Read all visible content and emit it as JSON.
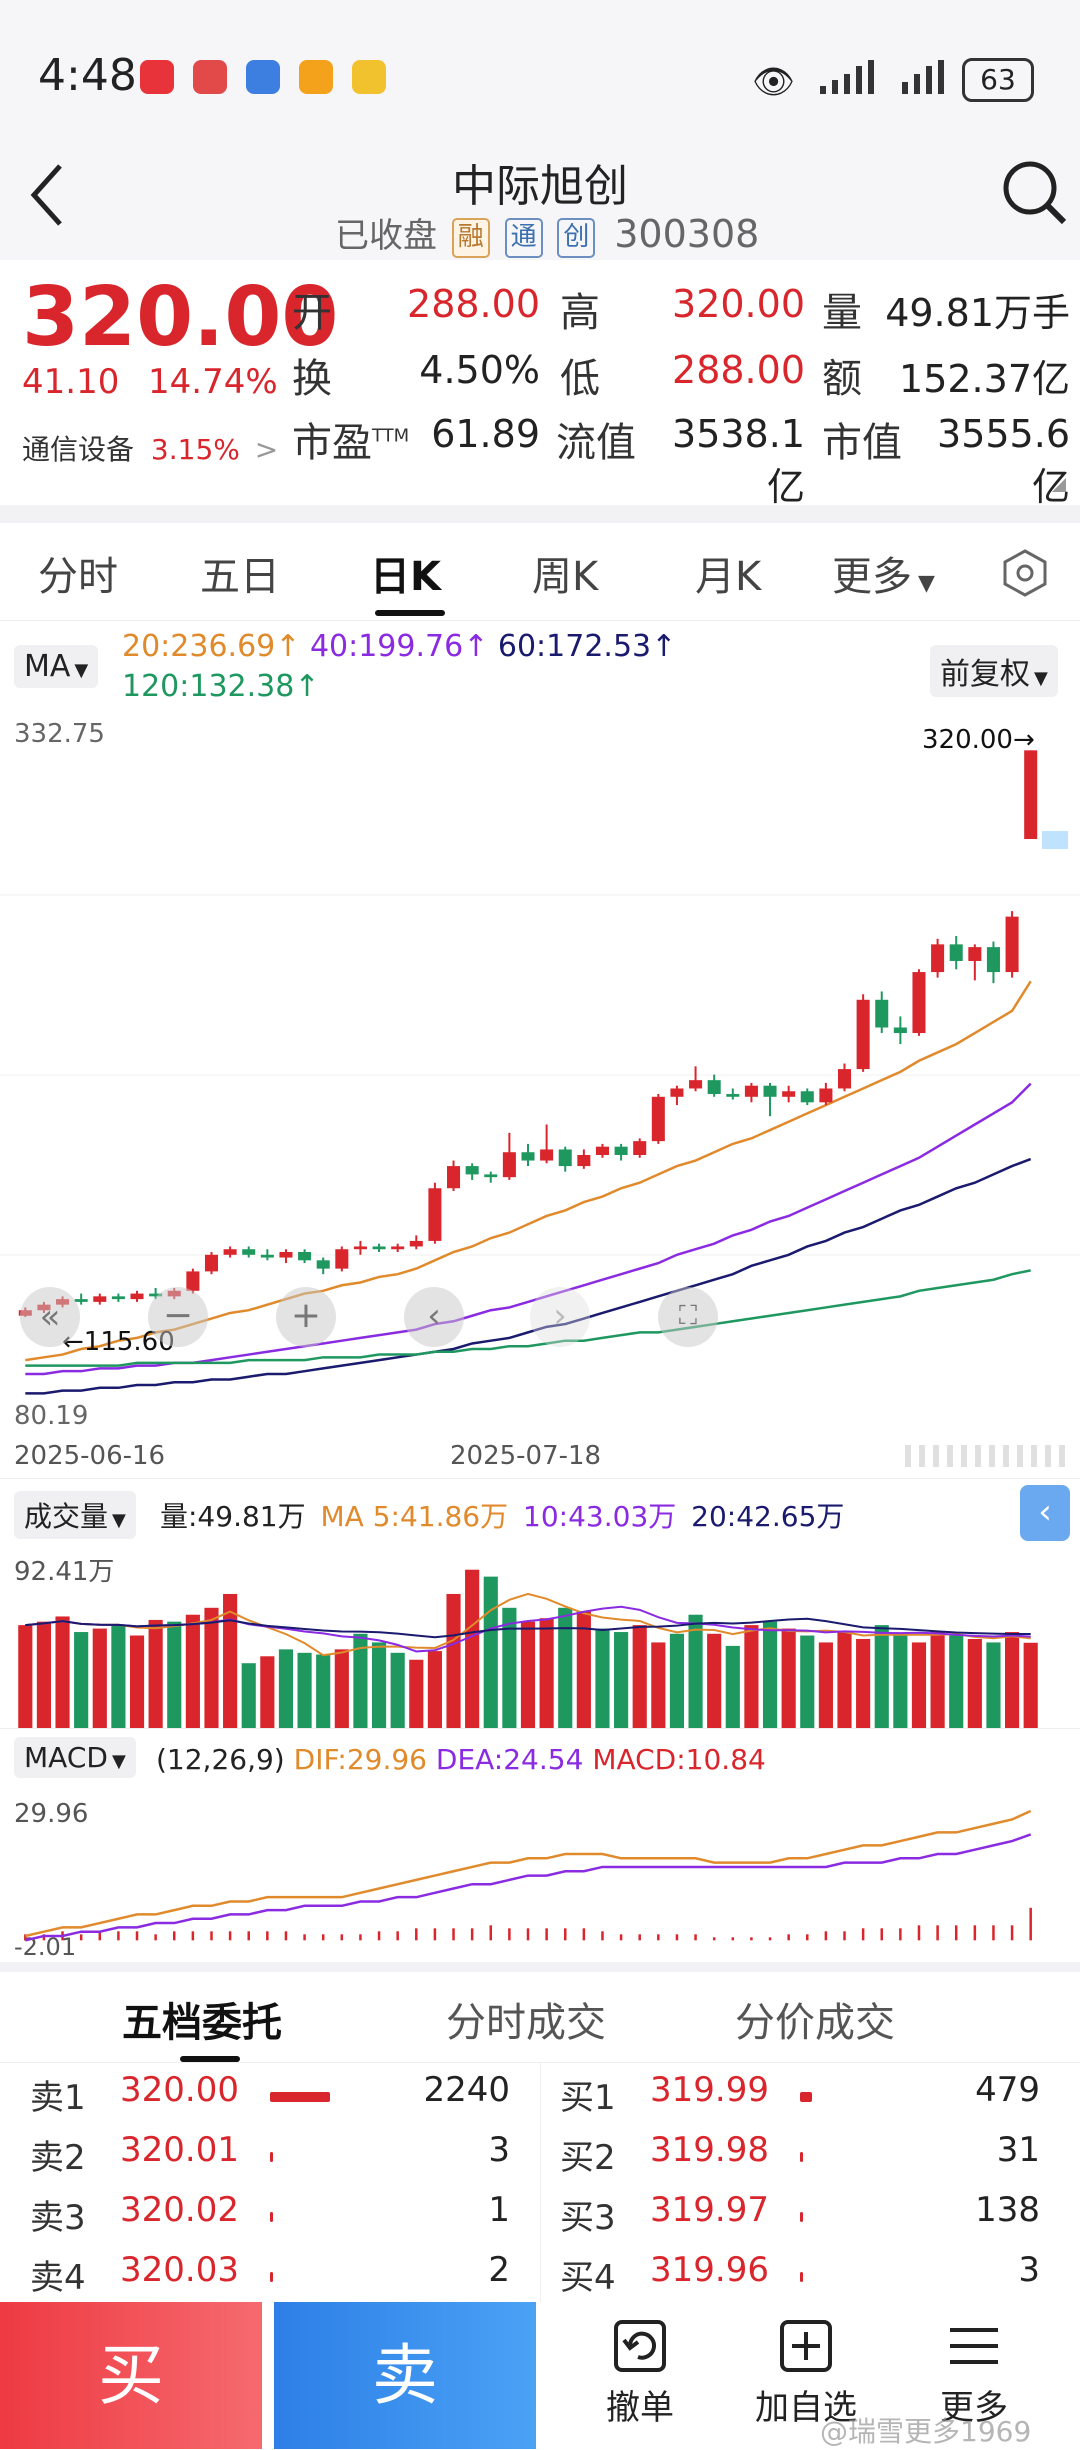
{
  "status_bar": {
    "time": "4:48",
    "battery": "63"
  },
  "header": {
    "title": "中际旭创",
    "status": "已收盘",
    "tags": [
      "融",
      "通",
      "创"
    ],
    "code": "300308"
  },
  "quote": {
    "price": "320.00",
    "change": "41.10",
    "change_pct": "14.74%",
    "sector": "通信设备",
    "sector_pct": "3.15%",
    "sector_arrow": ">",
    "fields": [
      {
        "label": "开",
        "value": "288.00"
      },
      {
        "label": "高",
        "value": "320.00"
      },
      {
        "label": "量",
        "value": "49.81万手"
      },
      {
        "label": "换",
        "value": "4.50%"
      },
      {
        "label": "低",
        "value": "288.00"
      },
      {
        "label": "额",
        "value": "152.37亿"
      },
      {
        "label": "市盈",
        "label_sup": "TTM",
        "value": "61.89"
      },
      {
        "label": "流值",
        "value": "3538.1亿"
      },
      {
        "label": "市值",
        "value": "3555.6亿"
      }
    ]
  },
  "ktabs": [
    "分时",
    "五日",
    "日K",
    "周K",
    "月K",
    "更多"
  ],
  "ma_bar": {
    "selector": "MA",
    "ma20": "20:236.69↑",
    "ma40": "40:199.76↑",
    "ma60": "60:172.53↑",
    "ma120": "120:132.38↑",
    "adjust": "前复权"
  },
  "price_chart_labels": {
    "top": "332.75",
    "bottom": "80.19",
    "high_label": "320.00→",
    "low_label": "←115.60",
    "date_left": "2025-06-16",
    "date_mid": "2025-07-18"
  },
  "volume_bar": {
    "selector": "成交量",
    "vol": "量:49.81万",
    "ma5": "MA 5:41.86万",
    "ma10": "10:43.03万",
    "ma20": "20:42.65万",
    "top_label": "92.41万"
  },
  "macd_bar": {
    "selector": "MACD",
    "params": "(12,26,9)",
    "dif": "DIF:29.96",
    "dea": "DEA:24.54",
    "macd": "MACD:10.84",
    "top_label": "29.96",
    "bottom_label": "-2.01"
  },
  "orderbook_tabs": [
    "五档委托",
    "分时成交",
    "分价成交"
  ],
  "orderbook": {
    "sell": [
      {
        "label": "卖1",
        "price": "320.00",
        "qty": "2240",
        "bar": 0.3
      },
      {
        "label": "卖2",
        "price": "320.01",
        "qty": "3",
        "bar": 0.004
      },
      {
        "label": "卖3",
        "price": "320.02",
        "qty": "1",
        "bar": 0.004
      },
      {
        "label": "卖4",
        "price": "320.03",
        "qty": "2",
        "bar": 0.004
      }
    ],
    "buy": [
      {
        "label": "买1",
        "price": "319.99",
        "qty": "479",
        "bar": 0.06
      },
      {
        "label": "买2",
        "price": "319.98",
        "qty": "31",
        "bar": 0.004
      },
      {
        "label": "买3",
        "price": "319.97",
        "qty": "138",
        "bar": 0.015
      },
      {
        "label": "买4",
        "price": "319.96",
        "qty": "3",
        "bar": 0.004
      }
    ]
  },
  "bottom_bar": {
    "buy": "买",
    "sell": "卖",
    "cancel": "撤单",
    "watch": "加自选",
    "more": "更多",
    "watermark": "@瑞雪更多1969"
  },
  "colors": {
    "up": "#d8262c",
    "down": "#1f9860",
    "ma5": "#e08a2c",
    "ma10": "#8a2be2",
    "ma20": "#1a1a6e"
  },
  "chart_data": {
    "type": "candlestick",
    "title": "",
    "ylim": [
      80.19,
      332.75
    ],
    "x_ticks": [
      "2025-06-16",
      "2025-07-18"
    ],
    "candles": [
      {
        "o": 116,
        "c": 118,
        "h": 119,
        "l": 115.6
      },
      {
        "o": 118,
        "c": 120,
        "h": 121,
        "l": 117
      },
      {
        "o": 120,
        "c": 122,
        "h": 123,
        "l": 119
      },
      {
        "o": 122,
        "c": 121,
        "h": 124,
        "l": 120
      },
      {
        "o": 121,
        "c": 123,
        "h": 124,
        "l": 120
      },
      {
        "o": 123,
        "c": 122,
        "h": 124,
        "l": 121
      },
      {
        "o": 122,
        "c": 124,
        "h": 125,
        "l": 121
      },
      {
        "o": 124,
        "c": 123,
        "h": 126,
        "l": 122
      },
      {
        "o": 123,
        "c": 125,
        "h": 126,
        "l": 122
      },
      {
        "o": 125,
        "c": 132,
        "h": 133,
        "l": 124
      },
      {
        "o": 132,
        "c": 138,
        "h": 139,
        "l": 131
      },
      {
        "o": 138,
        "c": 140,
        "h": 141,
        "l": 137
      },
      {
        "o": 140,
        "c": 138,
        "h": 141,
        "l": 137
      },
      {
        "o": 138,
        "c": 137,
        "h": 140,
        "l": 136
      },
      {
        "o": 137,
        "c": 139,
        "h": 140,
        "l": 135
      },
      {
        "o": 139,
        "c": 136,
        "h": 140,
        "l": 135
      },
      {
        "o": 136,
        "c": 133,
        "h": 137,
        "l": 131
      },
      {
        "o": 133,
        "c": 140,
        "h": 141,
        "l": 132
      },
      {
        "o": 140,
        "c": 141,
        "h": 143,
        "l": 138
      },
      {
        "o": 141,
        "c": 140,
        "h": 142,
        "l": 139
      },
      {
        "o": 140,
        "c": 141,
        "h": 142,
        "l": 139
      },
      {
        "o": 141,
        "c": 143,
        "h": 145,
        "l": 140
      },
      {
        "o": 143,
        "c": 162,
        "h": 164,
        "l": 142
      },
      {
        "o": 162,
        "c": 170,
        "h": 172,
        "l": 161
      },
      {
        "o": 170,
        "c": 167,
        "h": 171,
        "l": 165
      },
      {
        "o": 167,
        "c": 166,
        "h": 168,
        "l": 164
      },
      {
        "o": 166,
        "c": 175,
        "h": 182,
        "l": 165
      },
      {
        "o": 175,
        "c": 172,
        "h": 178,
        "l": 170
      },
      {
        "o": 172,
        "c": 176,
        "h": 185,
        "l": 171
      },
      {
        "o": 176,
        "c": 170,
        "h": 177,
        "l": 168
      },
      {
        "o": 170,
        "c": 174,
        "h": 176,
        "l": 169
      },
      {
        "o": 174,
        "c": 177,
        "h": 178,
        "l": 173
      },
      {
        "o": 177,
        "c": 174,
        "h": 178,
        "l": 172
      },
      {
        "o": 174,
        "c": 179,
        "h": 180,
        "l": 173
      },
      {
        "o": 179,
        "c": 195,
        "h": 196,
        "l": 178
      },
      {
        "o": 195,
        "c": 198,
        "h": 199,
        "l": 192
      },
      {
        "o": 198,
        "c": 201,
        "h": 206,
        "l": 197
      },
      {
        "o": 201,
        "c": 196,
        "h": 203,
        "l": 195
      },
      {
        "o": 196,
        "c": 195,
        "h": 198,
        "l": 194
      },
      {
        "o": 195,
        "c": 199,
        "h": 200,
        "l": 193
      },
      {
        "o": 199,
        "c": 195,
        "h": 200,
        "l": 188
      },
      {
        "o": 195,
        "c": 197,
        "h": 199,
        "l": 193
      },
      {
        "o": 197,
        "c": 193,
        "h": 198,
        "l": 192
      },
      {
        "o": 193,
        "c": 198,
        "h": 200,
        "l": 192
      },
      {
        "o": 198,
        "c": 205,
        "h": 207,
        "l": 197
      },
      {
        "o": 205,
        "c": 230,
        "h": 232,
        "l": 204
      },
      {
        "o": 230,
        "c": 220,
        "h": 233,
        "l": 218
      },
      {
        "o": 220,
        "c": 218,
        "h": 224,
        "l": 214
      },
      {
        "o": 218,
        "c": 240,
        "h": 241,
        "l": 217
      },
      {
        "o": 240,
        "c": 250,
        "h": 252,
        "l": 238
      },
      {
        "o": 250,
        "c": 244,
        "h": 253,
        "l": 241
      },
      {
        "o": 244,
        "c": 249,
        "h": 250,
        "l": 237
      },
      {
        "o": 249,
        "c": 240,
        "h": 251,
        "l": 236
      },
      {
        "o": 240,
        "c": 260,
        "h": 262,
        "l": 238
      },
      {
        "o": 288,
        "c": 320,
        "h": 320,
        "l": 288
      }
    ],
    "ma_series": [
      {
        "name": "20",
        "values": [
          100,
          101,
          102,
          104,
          105,
          107,
          108,
          110,
          111,
          113,
          115,
          117,
          118,
          120,
          122,
          124,
          125,
          127,
          128,
          130,
          131,
          133,
          136,
          139,
          141,
          144,
          146,
          149,
          152,
          154,
          157,
          159,
          162,
          164,
          167,
          170,
          172,
          175,
          178,
          180,
          183,
          186,
          189,
          192,
          195,
          198,
          201,
          204,
          208,
          211,
          214,
          218,
          222,
          226,
          236.69
        ]
      },
      {
        "name": "40",
        "values": [
          95,
          95,
          96,
          96,
          97,
          97,
          98,
          98,
          99,
          99,
          100,
          101,
          102,
          103,
          104,
          105,
          106,
          107,
          108,
          109,
          110,
          111,
          113,
          114,
          116,
          118,
          119,
          121,
          123,
          125,
          127,
          129,
          131,
          133,
          135,
          138,
          140,
          142,
          145,
          147,
          150,
          152,
          155,
          158,
          161,
          164,
          167,
          170,
          173,
          177,
          181,
          185,
          189,
          193,
          199.76
        ]
      },
      {
        "name": "60",
        "values": [
          88,
          88,
          89,
          89,
          90,
          90,
          91,
          91,
          92,
          92,
          93,
          93,
          94,
          95,
          95,
          96,
          97,
          98,
          99,
          100,
          101,
          102,
          103,
          104,
          106,
          107,
          108,
          110,
          112,
          113,
          115,
          117,
          119,
          121,
          123,
          125,
          127,
          129,
          131,
          134,
          136,
          138,
          141,
          143,
          146,
          148,
          151,
          154,
          156,
          159,
          162,
          164,
          167,
          170,
          172.53
        ]
      },
      {
        "name": "120",
        "values": [
          98,
          98,
          98,
          98,
          98,
          98,
          99,
          99,
          99,
          99,
          99,
          99,
          100,
          100,
          100,
          100,
          101,
          101,
          101,
          102,
          102,
          102,
          103,
          103,
          104,
          104,
          105,
          105,
          106,
          107,
          107,
          108,
          109,
          110,
          110,
          111,
          112,
          113,
          114,
          115,
          116,
          117,
          118,
          119,
          120,
          121,
          122,
          123,
          125,
          126,
          127,
          128,
          129,
          131,
          132.38
        ]
      }
    ],
    "volume": {
      "top": "92.41万",
      "values": [
        60,
        62,
        65,
        56,
        58,
        60,
        54,
        63,
        62,
        66,
        70,
        78,
        38,
        42,
        46,
        44,
        43,
        46,
        55,
        50,
        44,
        40,
        45,
        78,
        92,
        88,
        70,
        62,
        64,
        70,
        68,
        58,
        56,
        60,
        50,
        55,
        66,
        55,
        48,
        60,
        62,
        58,
        54,
        50,
        56,
        52,
        60,
        54,
        50,
        56,
        54,
        52,
        50,
        56,
        49.81
      ],
      "up": [
        1,
        1,
        1,
        0,
        1,
        0,
        1,
        1,
        0,
        1,
        1,
        1,
        0,
        1,
        0,
        0,
        0,
        1,
        0,
        0,
        0,
        1,
        1,
        1,
        1,
        0,
        0,
        1,
        1,
        0,
        1,
        0,
        0,
        1,
        1,
        0,
        0,
        1,
        0,
        1,
        0,
        1,
        0,
        1,
        1,
        1,
        0,
        0,
        1,
        1,
        0,
        1,
        0,
        1,
        1
      ]
    },
    "macd": {
      "dif": [
        1,
        2,
        3,
        3,
        4,
        5,
        6,
        6,
        7,
        8,
        8,
        9,
        9,
        10,
        10,
        10,
        10,
        10,
        11,
        12,
        13,
        14,
        15,
        16,
        17,
        18,
        18,
        19,
        19,
        20,
        20,
        20,
        19,
        19,
        19,
        19,
        19,
        18,
        18,
        18,
        18,
        19,
        19,
        20,
        21,
        22,
        22,
        23,
        24,
        25,
        25,
        26,
        27,
        28,
        29.96
      ],
      "dea": [
        0,
        1,
        1,
        2,
        2,
        3,
        3,
        4,
        4,
        5,
        5,
        6,
        6,
        7,
        7,
        8,
        8,
        8,
        9,
        9,
        10,
        10,
        11,
        12,
        13,
        13,
        14,
        15,
        15,
        16,
        16,
        17,
        17,
        17,
        17,
        17,
        17,
        17,
        17,
        17,
        17,
        17,
        17,
        17,
        18,
        18,
        18,
        19,
        19,
        20,
        20,
        21,
        22,
        23,
        24.54
      ],
      "hist": [
        2,
        2,
        3,
        2,
        3,
        3,
        3,
        2,
        3,
        3,
        3,
        3,
        3,
        3,
        3,
        2,
        2,
        2,
        2,
        3,
        3,
        4,
        4,
        4,
        4,
        5,
        4,
        4,
        4,
        4,
        4,
        3,
        2,
        2,
        2,
        2,
        2,
        1,
        1,
        1,
        1,
        2,
        2,
        3,
        3,
        4,
        4,
        4,
        5,
        5,
        5,
        5,
        5,
        5,
        10.84
      ]
    }
  }
}
